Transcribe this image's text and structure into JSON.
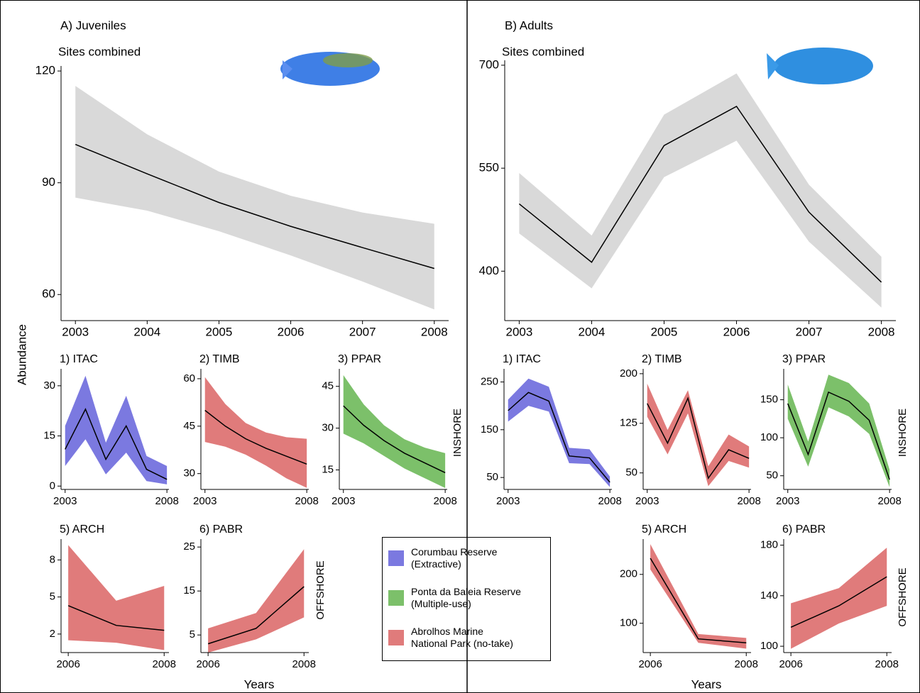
{
  "chart_data": [
    {
      "type": "line",
      "subtitle": "Sites combined",
      "x": [
        2003,
        2004,
        2005,
        2006,
        2007,
        2008
      ],
      "values": [
        100.3,
        92.4,
        84.7,
        78.3,
        72.6,
        67
      ],
      "lower": [
        86,
        82.5,
        77,
        70.5,
        63.5,
        56
      ],
      "upper": [
        116,
        103,
        93,
        86.5,
        82,
        79
      ],
      "line_color": "#000000",
      "band_color": "#d9d9d9",
      "xlim": [
        2002.8,
        2008.2
      ],
      "xticks": [
        2003,
        2004,
        2005,
        2006,
        2007,
        2008
      ],
      "ylim": [
        53,
        120.4
      ],
      "yticks": [
        60,
        90,
        120
      ]
    },
    {
      "type": "line",
      "title": "1) ITAC",
      "x": [
        2003,
        2004,
        2005,
        2006,
        2007,
        2008
      ],
      "values": [
        11,
        23,
        8,
        18,
        5,
        2
      ],
      "lower": [
        6,
        14,
        3.5,
        10,
        1.5,
        0.5
      ],
      "upper": [
        18,
        33,
        13,
        27,
        9,
        6
      ],
      "line_color": "#000000",
      "band_color": "#7b79e0",
      "xlim": [
        2002.8,
        2008.1
      ],
      "xticks": [
        2003,
        2008
      ],
      "ylim": [
        -1,
        34
      ],
      "yticks": [
        0,
        15,
        30
      ]
    },
    {
      "type": "line",
      "title": "2) TIMB",
      "x": [
        2003,
        2004,
        2005,
        2006,
        2007,
        2008
      ],
      "values": [
        50,
        45,
        41,
        38,
        35.5,
        33
      ],
      "lower": [
        40,
        38.5,
        36,
        32.5,
        28.5,
        25.5
      ],
      "upper": [
        60.5,
        52,
        46,
        43,
        41.5,
        41
      ],
      "line_color": "#000000",
      "band_color": "#e07b7b",
      "xlim": [
        2002.8,
        2008.1
      ],
      "xticks": [
        2003,
        2008
      ],
      "ylim": [
        25,
        62
      ],
      "yticks": [
        30,
        45,
        60
      ]
    },
    {
      "type": "line",
      "title": "3) PPAR",
      "x": [
        2003,
        2004,
        2005,
        2006,
        2007,
        2008
      ],
      "values": [
        38,
        31,
        25.5,
        21,
        17.5,
        14
      ],
      "lower": [
        28,
        24.5,
        20,
        15.5,
        12,
        8.5
      ],
      "upper": [
        49,
        38.5,
        31,
        26,
        23,
        21
      ],
      "line_color": "#000000",
      "band_color": "#7cc06a",
      "xlim": [
        2002.8,
        2008.1
      ],
      "xticks": [
        2003,
        2008
      ],
      "ylim": [
        8,
        50
      ],
      "yticks": [
        15,
        30,
        45
      ]
    },
    {
      "type": "line",
      "title": "5) ARCH",
      "x": [
        2006,
        2007,
        2008
      ],
      "values": [
        4.3,
        2.7,
        2.3
      ],
      "lower": [
        1.5,
        1.3,
        0.7
      ],
      "upper": [
        9.2,
        4.7,
        5.9
      ],
      "line_color": "#000000",
      "band_color": "#e07b7b",
      "xlim": [
        2005.85,
        2008.1
      ],
      "xticks": [
        2006,
        2008
      ],
      "ylim": [
        0.5,
        9.4
      ],
      "yticks": [
        2,
        5,
        8
      ]
    },
    {
      "type": "line",
      "title": "6) PABR",
      "x": [
        2006,
        2007,
        2008
      ],
      "values": [
        3,
        6.5,
        16
      ],
      "lower": [
        1,
        4,
        9
      ],
      "upper": [
        6.5,
        10,
        24.5
      ],
      "line_color": "#000000",
      "band_color": "#e07b7b",
      "xlim": [
        2005.85,
        2008.1
      ],
      "xticks": [
        2006,
        2008
      ],
      "ylim": [
        1,
        26
      ],
      "yticks": [
        5,
        15,
        25
      ]
    },
    {
      "type": "line",
      "subtitle": "Sites combined",
      "x": [
        2003,
        2004,
        2005,
        2006,
        2007,
        2008
      ],
      "values": [
        498,
        413,
        583,
        640,
        486,
        384
      ],
      "lower": [
        455,
        375,
        537,
        590,
        443,
        347
      ],
      "upper": [
        543,
        452,
        628,
        688,
        526,
        421
      ],
      "line_color": "#000000",
      "band_color": "#d9d9d9",
      "xlim": [
        2002.8,
        2008.2
      ],
      "xticks": [
        2003,
        2004,
        2005,
        2006,
        2007,
        2008
      ],
      "ylim": [
        328,
        702
      ],
      "yticks": [
        400,
        550,
        700
      ]
    },
    {
      "type": "line",
      "title": "1) ITAC",
      "x": [
        2003,
        2004,
        2005,
        2006,
        2007,
        2008
      ],
      "values": [
        190,
        228,
        210,
        95,
        91,
        40
      ],
      "lower": [
        167,
        200,
        188,
        80,
        78,
        30
      ],
      "upper": [
        213,
        257,
        240,
        112,
        109,
        52
      ],
      "line_color": "#000000",
      "band_color": "#7b79e0",
      "xlim": [
        2002.8,
        2008.1
      ],
      "xticks": [
        2003,
        2008
      ],
      "ylim": [
        25,
        270
      ],
      "yticks": [
        50,
        150,
        250
      ]
    },
    {
      "type": "line",
      "title": "2) TIMB",
      "x": [
        2003,
        2004,
        2005,
        2006,
        2007,
        2008
      ],
      "values": [
        155,
        95,
        163,
        42,
        85,
        72
      ],
      "lower": [
        135,
        78,
        140,
        30,
        68,
        58
      ],
      "upper": [
        185,
        115,
        175,
        60,
        108,
        90
      ],
      "line_color": "#000000",
      "band_color": "#e07b7b",
      "xlim": [
        2002.8,
        2008.1
      ],
      "xticks": [
        2003,
        2008
      ],
      "ylim": [
        25,
        202
      ],
      "yticks": [
        50,
        125,
        200
      ]
    },
    {
      "type": "line",
      "title": "3) PPAR",
      "x": [
        2003,
        2004,
        2005,
        2006,
        2007,
        2008
      ],
      "values": [
        145,
        78,
        160,
        148,
        123,
        45
      ],
      "lower": [
        125,
        62,
        140,
        128,
        105,
        35
      ],
      "upper": [
        170,
        95,
        183,
        172,
        145,
        58
      ],
      "line_color": "#000000",
      "band_color": "#7cc06a",
      "xlim": [
        2002.8,
        2008.1
      ],
      "xticks": [
        2003,
        2008
      ],
      "ylim": [
        32,
        186
      ],
      "yticks": [
        50,
        100,
        150
      ]
    },
    {
      "type": "line",
      "title": "5) ARCH",
      "x": [
        2006,
        2007,
        2008
      ],
      "values": [
        233,
        68,
        60
      ],
      "lower": [
        210,
        60,
        48
      ],
      "upper": [
        262,
        78,
        70
      ],
      "line_color": "#000000",
      "band_color": "#e07b7b",
      "xlim": [
        2005.85,
        2008.1
      ],
      "xticks": [
        2006,
        2008
      ],
      "ylim": [
        40,
        265
      ],
      "yticks": [
        100,
        200
      ]
    },
    {
      "type": "line",
      "title": "6) PABR",
      "x": [
        2006,
        2007,
        2008
      ],
      "values": [
        115,
        132,
        155
      ],
      "lower": [
        98,
        118,
        132
      ],
      "upper": [
        134,
        146,
        178
      ],
      "line_color": "#000000",
      "band_color": "#e07b7b",
      "xlim": [
        2005.85,
        2008.1
      ],
      "xticks": [
        2006,
        2008
      ],
      "ylim": [
        95,
        182
      ],
      "yticks": [
        100,
        140,
        180
      ]
    }
  ],
  "page": {
    "panels": [
      "A) Juveniles",
      "B) Adults"
    ],
    "y_label": "Abundance",
    "x_label": "Years",
    "rows": [
      "INSHORE",
      "OFFSHORE"
    ],
    "legend": [
      {
        "name": "Corumbau Reserve\n(Extractive)",
        "color": "#7b79e0"
      },
      {
        "name": "Ponta da Baleia Reserve\n(Multiple-use)",
        "color": "#7cc06a"
      },
      {
        "name": "Abrolhos Marine\nNational Park (no-take)",
        "color": "#e07b7b"
      }
    ]
  }
}
